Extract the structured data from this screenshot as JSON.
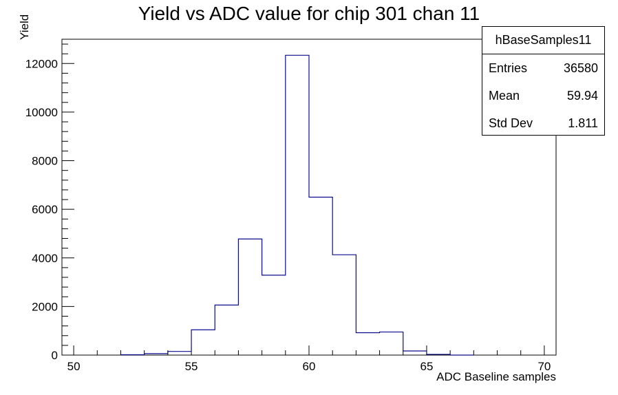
{
  "chart_data": {
    "type": "histogram",
    "title": "Yield vs ADC value for chip 301 chan 11",
    "xlabel": "ADC Baseline samples",
    "ylabel": "Yield",
    "xlim": [
      49.5,
      70.5
    ],
    "ylim": [
      0,
      13000
    ],
    "xticks": [
      50,
      55,
      60,
      65,
      70
    ],
    "yticks": [
      0,
      2000,
      4000,
      6000,
      8000,
      10000,
      12000
    ],
    "line_color": "#0a0a8c",
    "bins": [
      {
        "x": 52.5,
        "w": 1,
        "y": 15
      },
      {
        "x": 53.5,
        "w": 1,
        "y": 60
      },
      {
        "x": 54.5,
        "w": 1,
        "y": 150
      },
      {
        "x": 55.5,
        "w": 1,
        "y": 1040
      },
      {
        "x": 56.5,
        "w": 1,
        "y": 2060
      },
      {
        "x": 57.5,
        "w": 1,
        "y": 4780
      },
      {
        "x": 58.5,
        "w": 1,
        "y": 3290
      },
      {
        "x": 59.5,
        "w": 1,
        "y": 12340
      },
      {
        "x": 60.5,
        "w": 1,
        "y": 6500
      },
      {
        "x": 61.5,
        "w": 1,
        "y": 4130
      },
      {
        "x": 62.5,
        "w": 1,
        "y": 920
      },
      {
        "x": 63.5,
        "w": 1,
        "y": 950
      },
      {
        "x": 64.5,
        "w": 1,
        "y": 170
      },
      {
        "x": 65.5,
        "w": 1,
        "y": 30
      },
      {
        "x": 66.5,
        "w": 1,
        "y": 0
      }
    ]
  },
  "stats_box": {
    "name": "hBaseSamples11",
    "rows": [
      {
        "label": "Entries",
        "value": "36580"
      },
      {
        "label": "Mean",
        "value": "59.94"
      },
      {
        "label": "Std Dev",
        "value": "1.811"
      }
    ]
  }
}
